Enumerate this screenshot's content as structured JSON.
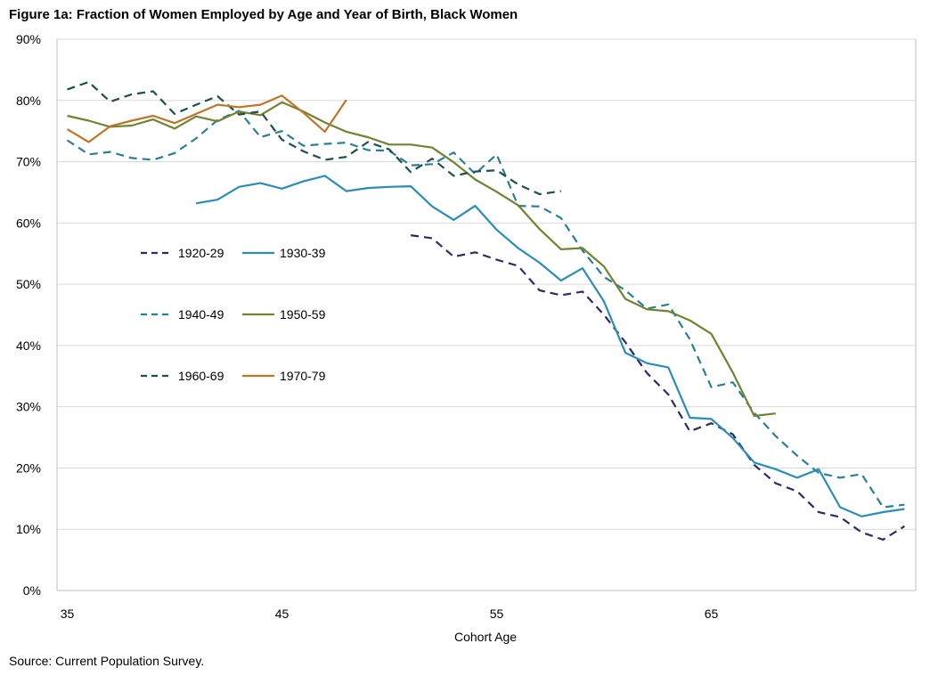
{
  "chart_data": {
    "type": "line",
    "title": "Figure 1a: Fraction of Women Employed by Age and Year of Birth, Black Women",
    "xlabel": "Cohort Age",
    "ylabel": "",
    "xlim": [
      35,
      74
    ],
    "ylim": [
      0,
      90
    ],
    "x_ticks": [
      35,
      45,
      55,
      65
    ],
    "x_tick_labels": [
      "35",
      "45",
      "55",
      "65"
    ],
    "y_ticks": [
      0,
      10,
      20,
      30,
      40,
      50,
      60,
      70,
      80,
      90
    ],
    "y_tick_labels": [
      "0%",
      "10%",
      "20%",
      "30%",
      "40%",
      "50%",
      "60%",
      "70%",
      "80%",
      "90%"
    ],
    "grid": "horizontal",
    "legend_position": "left-middle",
    "source": "Source: Current Population Survey.",
    "series": [
      {
        "name": "1920-29",
        "color": "#2c2b66",
        "dash": "dashed",
        "x": [
          51,
          52,
          53,
          54,
          55,
          56,
          57,
          58,
          59,
          60,
          61,
          62,
          63,
          64,
          65,
          66,
          67,
          68,
          69,
          70,
          71,
          72,
          73,
          74
        ],
        "values": [
          58.0,
          57.5,
          54.5,
          55.2,
          54.0,
          53.0,
          49.0,
          48.2,
          48.8,
          45.0,
          40.5,
          35.5,
          32.0,
          26.0,
          27.3,
          25.5,
          20.5,
          17.5,
          16.2,
          12.8,
          12.0,
          9.5,
          8.3,
          10.5
        ]
      },
      {
        "name": "1930-39",
        "color": "#2a8db5",
        "dash": "solid",
        "x": [
          41,
          42,
          43,
          44,
          45,
          46,
          47,
          48,
          49,
          50,
          51,
          52,
          53,
          54,
          55,
          56,
          57,
          58,
          59,
          60,
          61,
          62,
          63,
          64,
          65,
          66,
          67,
          68,
          69,
          70,
          71,
          72,
          73,
          74
        ],
        "values": [
          63.2,
          63.8,
          65.9,
          66.5,
          65.6,
          66.8,
          67.7,
          65.2,
          65.7,
          65.9,
          66.0,
          62.7,
          60.5,
          62.8,
          58.9,
          55.9,
          53.5,
          50.6,
          52.6,
          47.2,
          38.8,
          37.1,
          36.4,
          28.2,
          28.0,
          24.9,
          20.9,
          19.8,
          18.4,
          19.8,
          13.6,
          12.1,
          12.8,
          13.3
        ]
      },
      {
        "name": "1940-49",
        "color": "#2b7f93",
        "dash": "dashed",
        "x": [
          35,
          36,
          37,
          38,
          39,
          40,
          41,
          42,
          43,
          44,
          45,
          46,
          47,
          48,
          49,
          50,
          51,
          52,
          53,
          54,
          55,
          56,
          57,
          58,
          59,
          60,
          61,
          62,
          63,
          64,
          65,
          66,
          67,
          68,
          69,
          70,
          71,
          72,
          73,
          74
        ],
        "values": [
          73.5,
          71.2,
          71.6,
          70.6,
          70.3,
          71.4,
          73.8,
          76.8,
          78.3,
          74.0,
          75.0,
          72.6,
          72.9,
          73.1,
          71.9,
          71.8,
          69.4,
          69.6,
          71.5,
          68.0,
          71.2,
          62.8,
          62.7,
          60.8,
          55.5,
          51.2,
          49.0,
          46.0,
          46.7,
          41.0,
          33.2,
          34.0,
          29.0,
          25.2,
          22.0,
          19.2,
          18.4,
          19.0,
          13.6,
          14.0
        ]
      },
      {
        "name": "1950-59",
        "color": "#6f8330",
        "dash": "solid",
        "x": [
          35,
          36,
          37,
          38,
          39,
          40,
          41,
          42,
          43,
          44,
          45,
          46,
          47,
          48,
          49,
          50,
          51,
          52,
          53,
          54,
          55,
          56,
          57,
          58,
          59,
          60,
          61,
          62,
          63,
          64,
          65,
          66,
          67,
          68
        ],
        "values": [
          77.5,
          76.7,
          75.7,
          75.9,
          76.9,
          75.4,
          77.4,
          76.6,
          78.2,
          77.6,
          79.7,
          78.2,
          76.4,
          74.9,
          74.0,
          72.8,
          72.8,
          72.3,
          69.9,
          67.1,
          65.1,
          62.9,
          59.0,
          55.7,
          55.9,
          52.9,
          47.6,
          45.9,
          45.6,
          44.1,
          41.9,
          35.6,
          28.5,
          28.9
        ]
      },
      {
        "name": "1960-69",
        "color": "#1f4e4e",
        "dash": "dashed",
        "x": [
          35,
          36,
          37,
          38,
          39,
          40,
          41,
          42,
          43,
          44,
          45,
          46,
          47,
          48,
          49,
          50,
          51,
          52,
          53,
          54,
          55,
          56,
          57,
          58
        ],
        "values": [
          81.8,
          83.0,
          79.8,
          81.0,
          81.5,
          77.8,
          79.3,
          80.7,
          77.7,
          78.2,
          73.6,
          71.7,
          70.3,
          70.8,
          73.2,
          72.0,
          68.3,
          70.5,
          67.7,
          68.4,
          68.6,
          66.3,
          64.7,
          65.2
        ]
      },
      {
        "name": "1970-79",
        "color": "#c07526",
        "dash": "solid",
        "x": [
          35,
          36,
          37,
          38,
          39,
          40,
          41,
          42,
          43,
          44,
          45,
          46,
          47,
          48
        ],
        "values": [
          75.3,
          73.2,
          75.8,
          76.7,
          77.5,
          76.3,
          77.8,
          79.3,
          78.9,
          79.3,
          80.8,
          78.0,
          74.9,
          80.1
        ]
      }
    ]
  }
}
